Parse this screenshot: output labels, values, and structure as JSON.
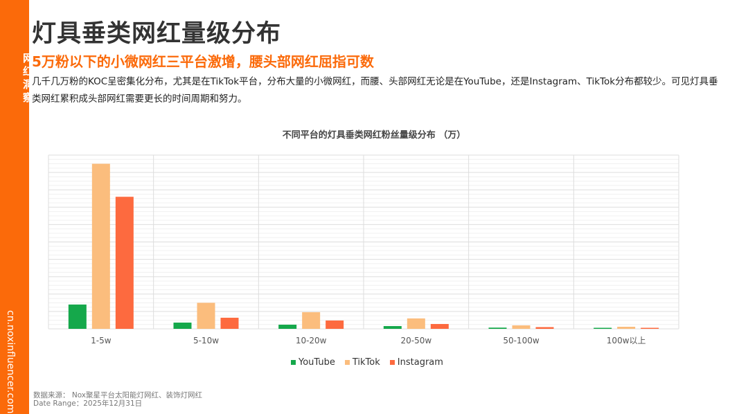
{
  "sidebar": {
    "title": "网红洞察",
    "url": "cn.noxinfluencer.com"
  },
  "header": {
    "title": "灯具垂类网红量级分布",
    "subtitle": "5万粉以下的小微网红三平台激增，腰头部网红屈指可数",
    "description": "几千几万粉的KOC呈密集化分布，尤其是在TikTok平台，分布大量的小微网红，而腰、头部网红无论是在YouTube，还是Instagram、TikTok分布都较少。可见灯具垂类网红累积成头部网红需要更长的时间周期和努力。"
  },
  "chart_data": {
    "type": "bar",
    "title": "不同平台的灯具垂类网红粉丝量级分布 （万）",
    "categories": [
      "1-5w",
      "5-10w",
      "10-20w",
      "20-50w",
      "50-100w",
      "100w以上"
    ],
    "series": [
      {
        "name": "YouTube",
        "color": "#15a84b",
        "values": [
          1.4,
          0.36,
          0.24,
          0.16,
          0.07,
          0.06
        ]
      },
      {
        "name": "TikTok",
        "color": "#fbbd7d",
        "values": [
          9.5,
          1.5,
          0.96,
          0.6,
          0.2,
          0.12
        ]
      },
      {
        "name": "Instagram",
        "color": "#fd6a3f",
        "values": [
          7.6,
          0.64,
          0.48,
          0.28,
          0.1,
          0.06
        ]
      }
    ],
    "ylim": [
      0,
      10
    ],
    "grid": true,
    "legend": "bottom",
    "y_tick_labels": false
  },
  "footer": {
    "source": "数据来源：    Nox聚星平台太阳能灯网红、装饰灯网红",
    "date_range": "Date Range：2025年12月31日"
  }
}
